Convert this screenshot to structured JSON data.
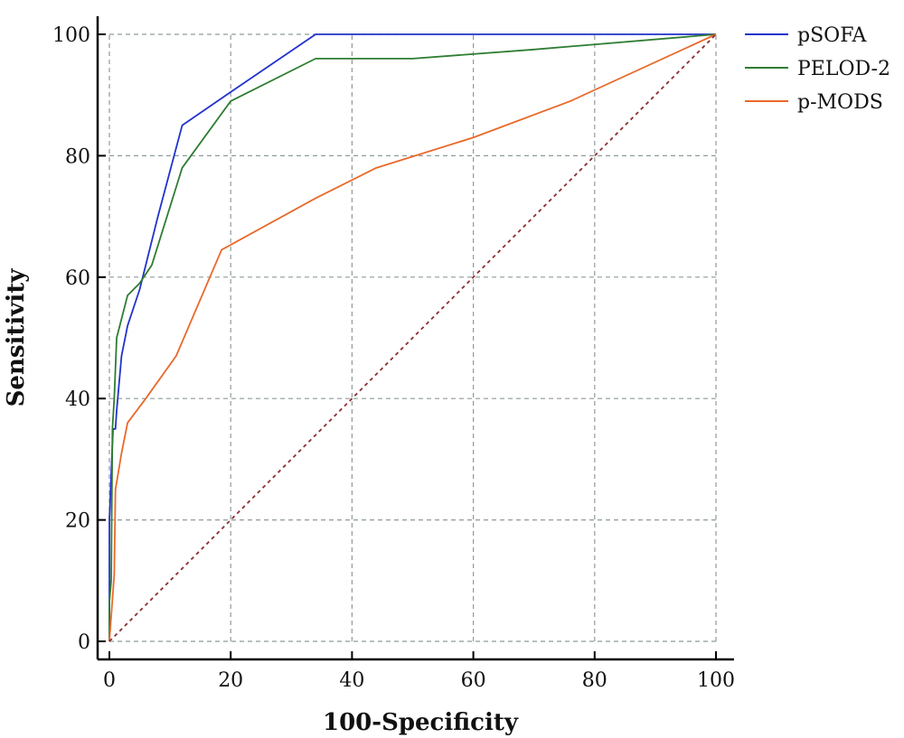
{
  "chart_data": {
    "type": "line",
    "title": "",
    "xlabel": "100-Specificity",
    "ylabel": "Sensitivity",
    "xlim": [
      0,
      100
    ],
    "ylim": [
      0,
      100
    ],
    "xticks": [
      0,
      20,
      40,
      60,
      80,
      100
    ],
    "yticks": [
      0,
      20,
      40,
      60,
      80,
      100
    ],
    "grid": true,
    "legend_position": "top-right",
    "series": [
      {
        "name": "pSOFA",
        "color": "#2233cc",
        "points": [
          [
            0,
            0
          ],
          [
            0,
            20
          ],
          [
            0.6,
            35
          ],
          [
            1,
            35
          ],
          [
            1.2,
            38
          ],
          [
            2,
            47
          ],
          [
            3,
            52
          ],
          [
            5,
            58
          ],
          [
            8,
            70
          ],
          [
            12,
            85
          ],
          [
            20,
            90.5
          ],
          [
            34,
            100
          ],
          [
            100,
            100
          ]
        ]
      },
      {
        "name": "PELOD-2",
        "color": "#2e7d32",
        "points": [
          [
            0,
            0
          ],
          [
            0,
            6.5
          ],
          [
            0.3,
            10
          ],
          [
            0.5,
            35
          ],
          [
            0.8,
            40
          ],
          [
            1,
            45
          ],
          [
            1.2,
            50
          ],
          [
            3,
            57
          ],
          [
            5,
            59
          ],
          [
            7,
            62
          ],
          [
            12,
            78
          ],
          [
            20,
            89
          ],
          [
            34,
            96
          ],
          [
            50,
            96
          ],
          [
            70,
            97.5
          ],
          [
            100,
            100
          ]
        ]
      },
      {
        "name": "p-MODS",
        "color": "#e8692a",
        "points": [
          [
            0,
            0
          ],
          [
            0.8,
            11
          ],
          [
            1,
            25
          ],
          [
            2,
            31
          ],
          [
            3,
            36
          ],
          [
            6,
            40
          ],
          [
            11,
            47
          ],
          [
            18.5,
            64.5
          ],
          [
            34,
            73
          ],
          [
            44,
            78
          ],
          [
            60,
            83
          ],
          [
            76,
            89
          ],
          [
            100,
            100
          ]
        ]
      },
      {
        "name": "",
        "color": "#8b2e2e",
        "style": "dashed",
        "points": [
          [
            0,
            0
          ],
          [
            100,
            100
          ]
        ]
      }
    ]
  }
}
